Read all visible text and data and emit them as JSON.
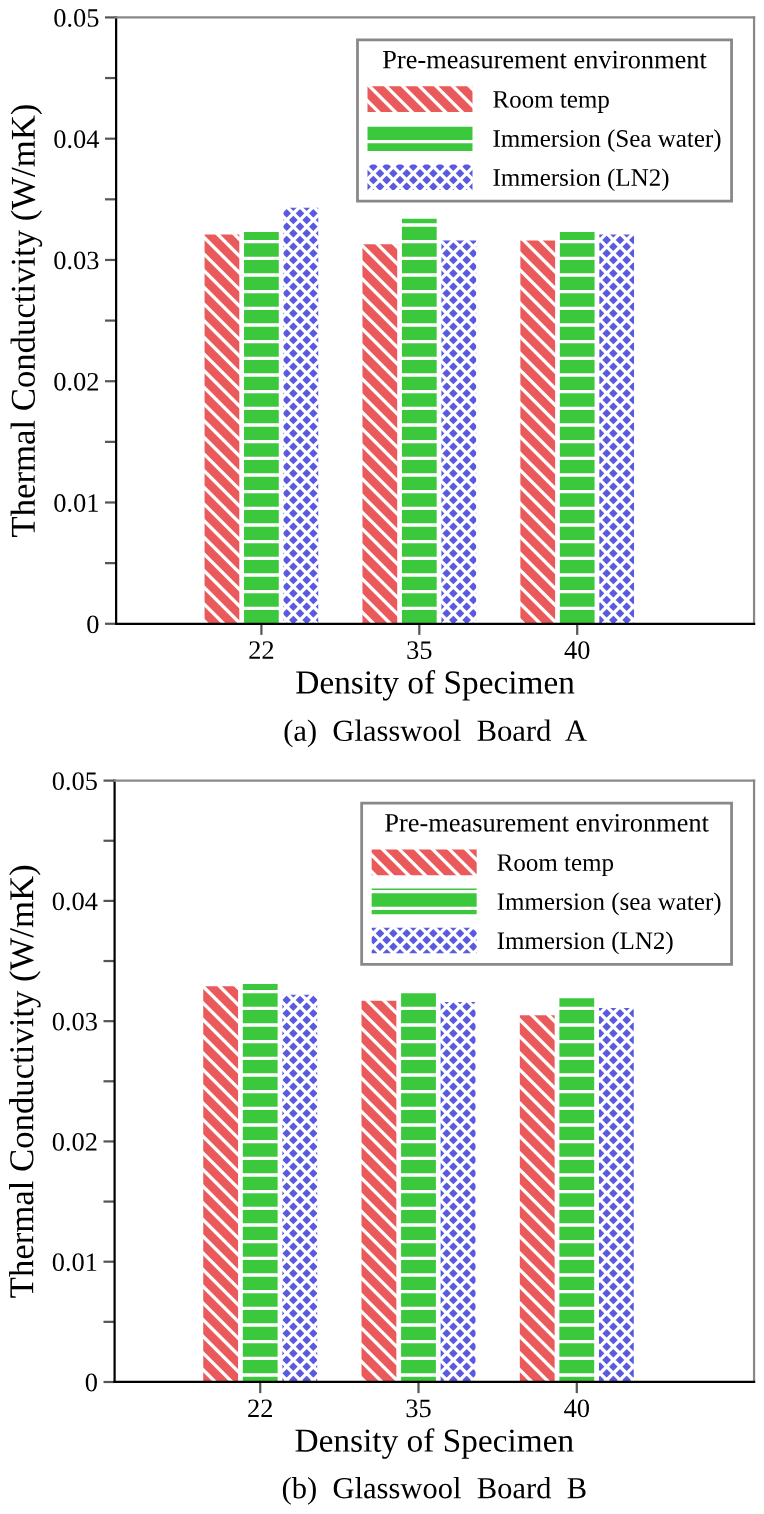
{
  "chart_data": [
    {
      "type": "bar",
      "xlabel": "Density of Specimen",
      "ylabel": "Thermal Conductivity (W/mK)",
      "legend_title": "Pre-measurement environment",
      "legend": "top right",
      "grid": false,
      "categories": [
        "22",
        "35",
        "40"
      ],
      "series": [
        {
          "name": "Room temp",
          "color": "#ea5a5a",
          "values": [
            0.0321,
            0.0313,
            0.0316
          ]
        },
        {
          "name": "Immersion (Sea water)",
          "color": "#3cc83c",
          "values": [
            0.0323,
            0.0334,
            0.0323
          ]
        },
        {
          "name": "Immersion (LN2)",
          "color": "#5a5ae0",
          "values": [
            0.0343,
            0.0316,
            0.0321
          ]
        }
      ],
      "ylim": [
        0,
        0.05
      ],
      "yticks": [
        0,
        {
          "value": 0.005,
          "label": null
        },
        0.01,
        {
          "value": 0.015,
          "label": null
        },
        0.02,
        {
          "value": 0.025,
          "label": null
        },
        0.03,
        {
          "value": 0.035,
          "label": null
        },
        0.04,
        {
          "value": 0.045,
          "label": null
        },
        0.05
      ],
      "annotations": [
        "(a)  Glasswool  Board  A"
      ]
    },
    {
      "type": "bar",
      "xlabel": "Density of Specimen",
      "ylabel": "Thermal Conductivity (W/mK)",
      "legend_title": "Pre-measurement environment",
      "legend": "top right",
      "grid": false,
      "categories": [
        "22",
        "35",
        "40"
      ],
      "series": [
        {
          "name": "Room temp",
          "color": "#ea5a5a",
          "values": [
            0.0329,
            0.0317,
            0.0305
          ]
        },
        {
          "name": "Immersion (sea water)",
          "color": "#3cc83c",
          "values": [
            0.0331,
            0.0324,
            0.0319
          ]
        },
        {
          "name": "Immersion (LN2)",
          "color": "#5a5ae0",
          "values": [
            0.0322,
            0.0316,
            0.0311
          ]
        }
      ],
      "ylim": [
        0,
        0.05
      ],
      "yticks": [
        0,
        {
          "value": 0.005,
          "label": null
        },
        0.01,
        {
          "value": 0.015,
          "label": null
        },
        0.02,
        {
          "value": 0.025,
          "label": null
        },
        0.03,
        {
          "value": 0.035,
          "label": null
        },
        0.04,
        {
          "value": 0.045,
          "label": null
        },
        0.05
      ],
      "annotations": [
        "(b)  Glasswool  Board  B"
      ]
    }
  ]
}
